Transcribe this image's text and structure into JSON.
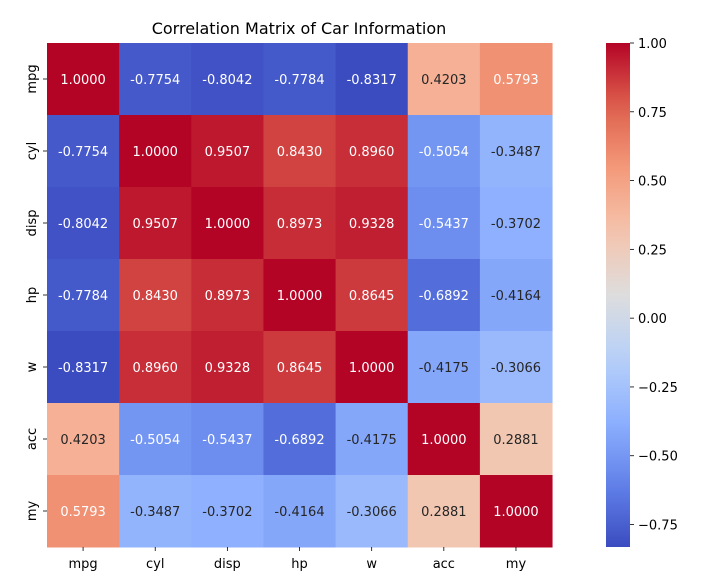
{
  "chart_data": {
    "type": "heatmap",
    "title": "Correlation Matrix of Car Information",
    "xlabel": "",
    "ylabel": "",
    "categories": [
      "mpg",
      "cyl",
      "disp",
      "hp",
      "w",
      "acc",
      "my"
    ],
    "values": [
      [
        1.0,
        -0.7754,
        -0.8042,
        -0.7784,
        -0.8317,
        0.4203,
        0.5793
      ],
      [
        -0.7754,
        1.0,
        0.9507,
        0.843,
        0.896,
        -0.5054,
        -0.3487
      ],
      [
        -0.8042,
        0.9507,
        1.0,
        0.8973,
        0.9328,
        -0.5437,
        -0.3702
      ],
      [
        -0.7784,
        0.843,
        0.8973,
        1.0,
        0.8645,
        -0.6892,
        -0.4164
      ],
      [
        -0.8317,
        0.896,
        0.9328,
        0.8645,
        1.0,
        -0.4175,
        -0.3066
      ],
      [
        0.4203,
        -0.5054,
        -0.5437,
        -0.6892,
        -0.4175,
        1.0,
        0.2881
      ],
      [
        0.5793,
        -0.3487,
        -0.3702,
        -0.4164,
        -0.3066,
        0.2881,
        1.0
      ]
    ],
    "value_format": "4 decimals",
    "colormap": "coolwarm",
    "colorbar": {
      "range": [
        -0.8317,
        1.0
      ],
      "ticks": [
        "1.00",
        "0.75",
        "0.50",
        "0.25",
        "0.00",
        "−0.25",
        "−0.50",
        "−0.75"
      ],
      "tick_values": [
        1.0,
        0.75,
        0.5,
        0.25,
        0.0,
        -0.25,
        -0.5,
        -0.75
      ]
    },
    "grid": false,
    "legend": "colorbar at right"
  }
}
